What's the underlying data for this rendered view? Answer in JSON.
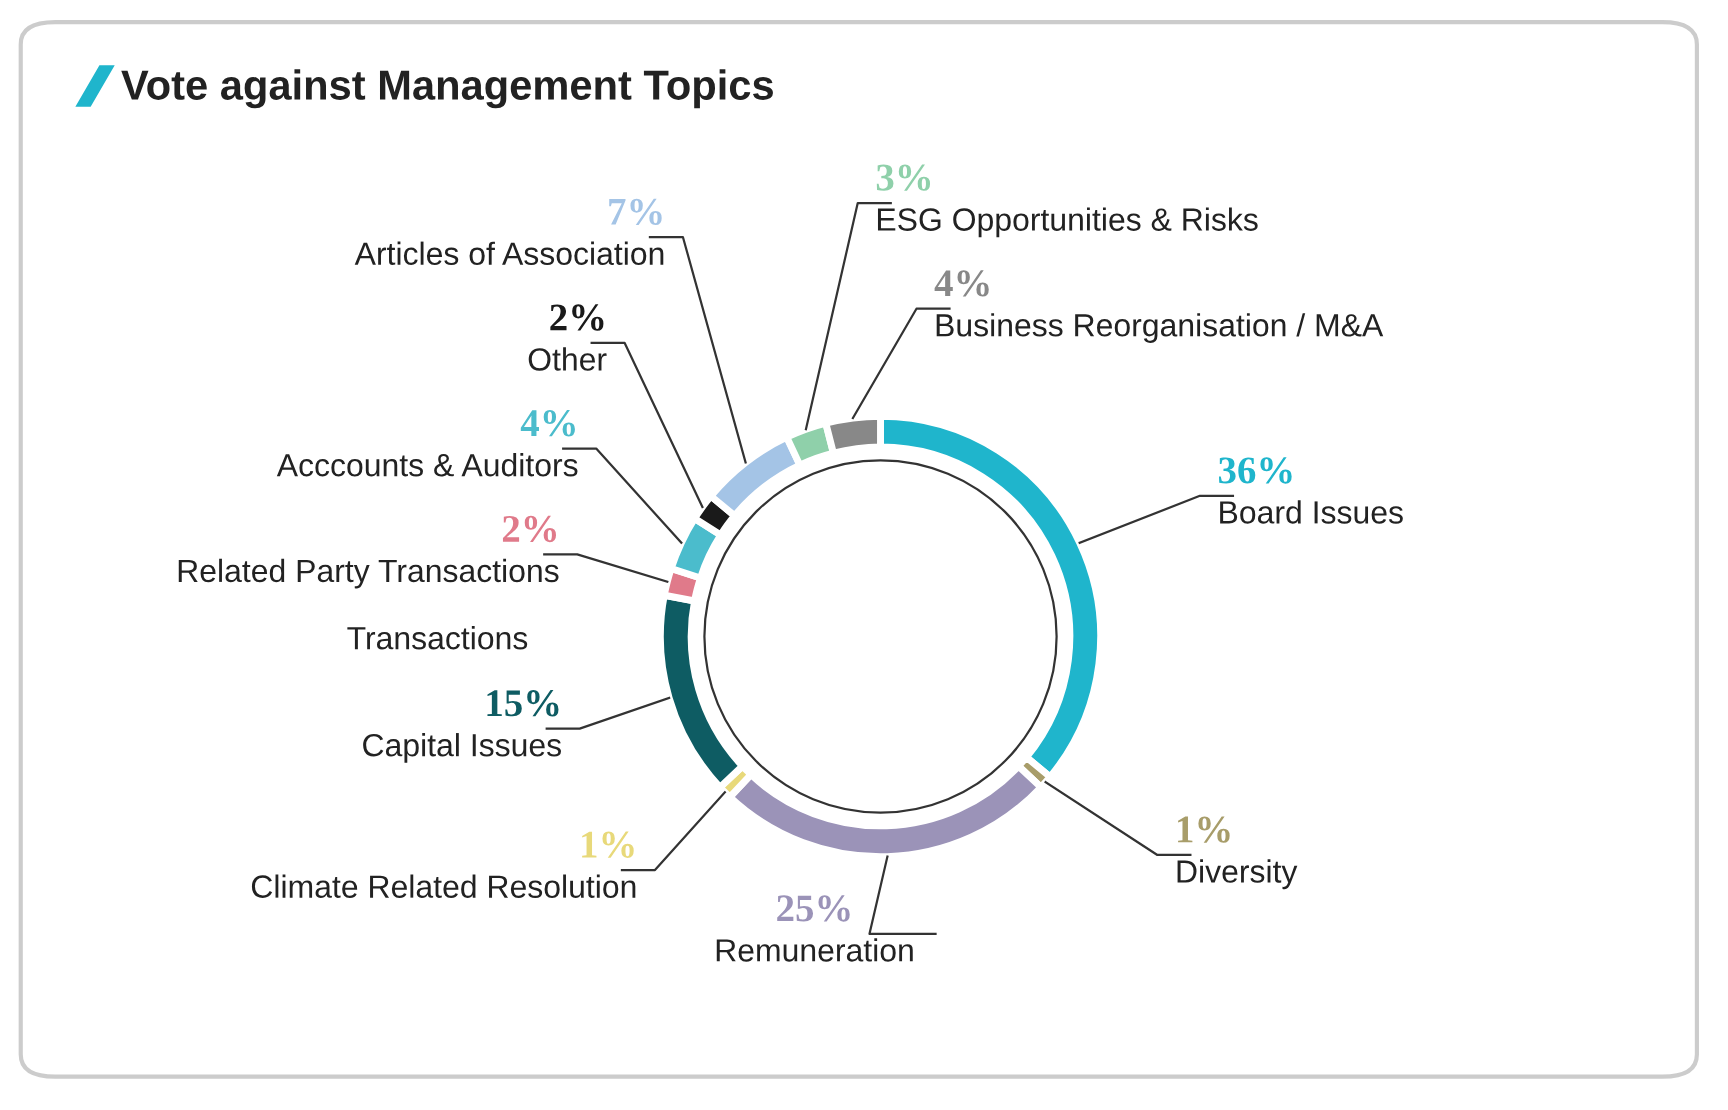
{
  "chart_data": {
    "type": "donut",
    "title": "Vote against Management Topics",
    "categories": [
      "Board Issues",
      "Diversity",
      "Remuneration",
      "Climate Related Resolution",
      "Capital Issues",
      "Related Party Transactions",
      "Acccounts & Auditors",
      "Other",
      "Articles of Association",
      "ESG Opportunities & Risks",
      "Business Reorganisation / M&A"
    ],
    "values": [
      36,
      1,
      25,
      1,
      15,
      2,
      4,
      2,
      7,
      3,
      4
    ],
    "colors": [
      "#1fb5cc",
      "#a89d6a",
      "#9b93b8",
      "#e8d97a",
      "#0e5c63",
      "#e07a8a",
      "#4bbccc",
      "#1a1a1a",
      "#a4c4e6",
      "#8fd0aa",
      "#888888"
    ],
    "value_labels": [
      "36%",
      "1%",
      "25%",
      "1%",
      "15%",
      "2%",
      "4%",
      "2%",
      "7%",
      "3%",
      "4%"
    ],
    "annotations": [
      "Transactions"
    ]
  }
}
